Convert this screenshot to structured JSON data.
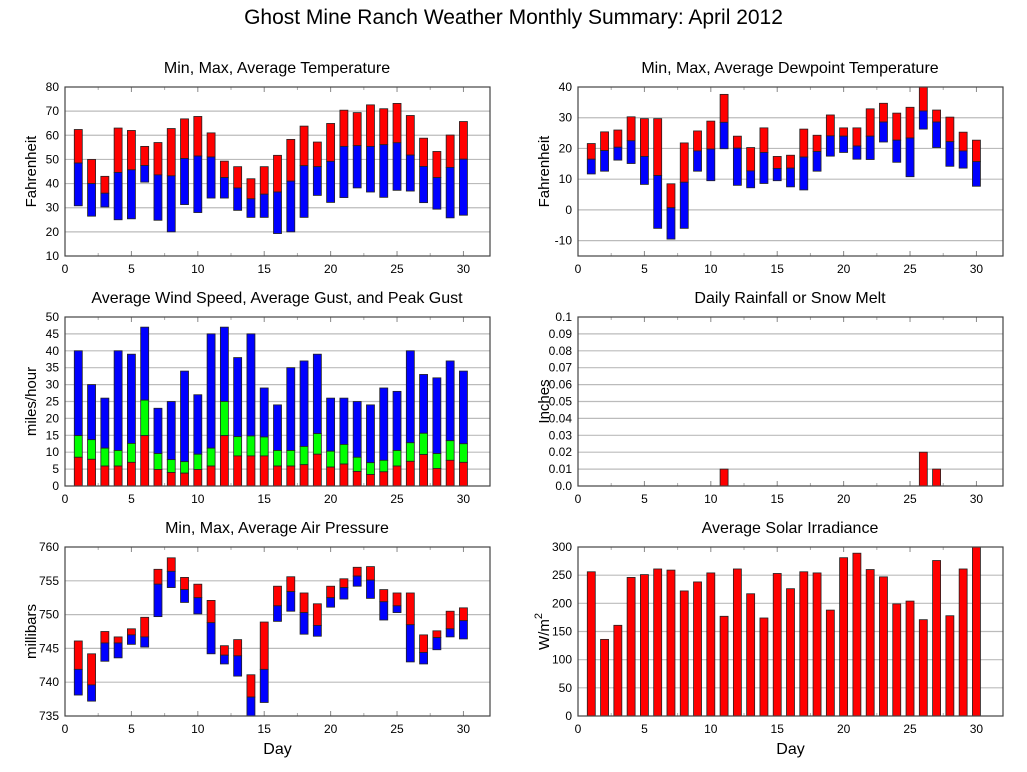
{
  "title": "Ghost Mine Ranch Weather Monthly Summary: April 2012",
  "colors": {
    "max": "#ff0000",
    "min": "#0000ff",
    "gust": "#00ff00",
    "bar_edge": "#000000",
    "grid": "#bbbbbb"
  },
  "chart_data": [
    {
      "id": "temperature",
      "type": "bar",
      "title": "Min, Max, Average Temperature",
      "xlabel": "",
      "ylabel": "Fahrenheit",
      "xlim": [
        0,
        32
      ],
      "ylim": [
        10,
        80
      ],
      "xticks": [
        0,
        5,
        10,
        15,
        20,
        25,
        30
      ],
      "yticks": [
        10,
        20,
        30,
        40,
        50,
        60,
        70,
        80
      ],
      "grid": "horizontal",
      "x": [
        1,
        2,
        3,
        4,
        5,
        6,
        7,
        8,
        9,
        10,
        11,
        12,
        13,
        14,
        15,
        16,
        17,
        18,
        19,
        20,
        21,
        22,
        23,
        24,
        25,
        26,
        27,
        28,
        29,
        30
      ],
      "series": [
        {
          "name": "Max",
          "values": [
            62.4,
            50,
            43,
            63,
            62,
            55.4,
            57,
            62.8,
            66.8,
            67.8,
            61,
            49.3,
            47,
            42,
            47,
            51.7,
            58.3,
            63.8,
            57.2,
            64.9,
            70.4,
            69.4,
            72.6,
            71,
            73.2,
            68.2,
            58.8,
            53.3,
            60.1,
            65.7
          ]
        },
        {
          "name": "Average",
          "values": [
            48.5,
            40,
            36,
            44.6,
            45.7,
            47.5,
            43.6,
            43.2,
            50.4,
            51.4,
            51,
            42.5,
            38.2,
            33.7,
            35.6,
            36.5,
            41,
            47.4,
            47,
            49.2,
            55.4,
            55.7,
            55.4,
            56.1,
            56.9,
            51.8,
            47.1,
            42.5,
            46.7,
            50.1
          ]
        },
        {
          "name": "Min",
          "values": [
            30.8,
            26.5,
            30.3,
            25,
            25.4,
            40.6,
            24.8,
            20,
            31.3,
            28,
            34,
            34,
            28.9,
            26,
            26,
            19.3,
            20,
            26,
            35.1,
            32.2,
            34.2,
            38.2,
            36.5,
            34.3,
            37.2,
            36.9,
            32.1,
            29.4,
            25.8,
            26.9
          ]
        }
      ]
    },
    {
      "id": "dewpoint",
      "type": "bar",
      "title": "Min, Max, Average Dewpoint Temperature",
      "xlabel": "",
      "ylabel": "Fahrenheit",
      "xlim": [
        0,
        32
      ],
      "ylim": [
        -15,
        40
      ],
      "xticks": [
        0,
        5,
        10,
        15,
        20,
        25,
        30
      ],
      "yticks": [
        -10,
        0,
        10,
        20,
        30,
        40
      ],
      "grid": "horizontal",
      "x": [
        1,
        2,
        3,
        4,
        5,
        6,
        7,
        8,
        9,
        10,
        11,
        12,
        13,
        14,
        15,
        16,
        17,
        18,
        19,
        20,
        21,
        22,
        23,
        24,
        25,
        26,
        27,
        28,
        29,
        30
      ],
      "series": [
        {
          "name": "Max",
          "values": [
            21.6,
            25.4,
            26,
            30.3,
            29.7,
            29.7,
            8.5,
            21.8,
            25.7,
            28.9,
            37.6,
            24,
            20.3,
            26.7,
            17.4,
            17.8,
            26.3,
            24.3,
            30.9,
            26.7,
            26.7,
            32.9,
            34.7,
            31.5,
            33.4,
            40,
            32.5,
            30.2,
            25.3,
            22.7
          ]
        },
        {
          "name": "Average",
          "values": [
            16.5,
            19.3,
            20.4,
            22.5,
            17.4,
            11.2,
            0.7,
            9,
            19.2,
            19.8,
            28.5,
            20.1,
            12.7,
            18.7,
            13.5,
            13.6,
            17.2,
            19,
            24.1,
            24,
            20.8,
            24,
            28.6,
            22.7,
            23.4,
            32.2,
            28.6,
            22.2,
            19.2,
            15.7
          ]
        },
        {
          "name": "Min",
          "values": [
            11.7,
            12.6,
            16.2,
            15.1,
            8.3,
            -6,
            -9.5,
            -6,
            12.6,
            9.5,
            19.9,
            8,
            7.2,
            8.6,
            9.5,
            7.5,
            6.5,
            12.6,
            17.5,
            18.7,
            16.5,
            16.4,
            22.1,
            15.5,
            10.8,
            26.3,
            20.3,
            14.2,
            13.6,
            7.7
          ]
        }
      ]
    },
    {
      "id": "wind",
      "type": "bar",
      "title": "Average Wind Speed, Average Gust, and Peak Gust",
      "xlabel": "",
      "ylabel": "miles/hour",
      "xlim": [
        0,
        32
      ],
      "ylim": [
        0,
        50
      ],
      "xticks": [
        0,
        5,
        10,
        15,
        20,
        25,
        30
      ],
      "yticks": [
        0,
        5,
        10,
        15,
        20,
        25,
        30,
        35,
        40,
        45,
        50
      ],
      "grid": "horizontal",
      "x": [
        1,
        2,
        3,
        4,
        5,
        6,
        7,
        8,
        9,
        10,
        11,
        12,
        13,
        14,
        15,
        16,
        17,
        18,
        19,
        20,
        21,
        22,
        23,
        24,
        25,
        26,
        27,
        28,
        29,
        30
      ],
      "series": [
        {
          "name": "Peak Gust",
          "values": [
            40,
            30,
            26,
            40,
            39,
            47,
            23,
            25,
            34,
            27,
            45,
            47,
            38,
            45,
            29,
            24,
            35,
            37,
            39,
            26,
            26,
            25,
            24,
            29,
            28,
            40,
            33,
            32,
            37,
            34
          ]
        },
        {
          "name": "Average Gust",
          "values": [
            14.9,
            13.7,
            11.2,
            10.5,
            12.6,
            25.4,
            9.6,
            7.8,
            7.2,
            9.4,
            11.2,
            25,
            14.6,
            14.8,
            14.5,
            10.5,
            10.5,
            11.7,
            15.5,
            10.3,
            12.3,
            8.5,
            6.9,
            7.6,
            10.5,
            12.8,
            15.6,
            9.6,
            13.4,
            12.5
          ]
        },
        {
          "name": "Average Wind Speed",
          "values": [
            8.5,
            7.9,
            5.9,
            5.9,
            7,
            14.9,
            4.9,
            4,
            3.8,
            4.9,
            5.9,
            14.9,
            8.9,
            8.9,
            8.9,
            5.9,
            5.9,
            6.3,
            9.4,
            5.6,
            6.5,
            4.3,
            3.4,
            4.2,
            5.9,
            7.3,
            9.3,
            5.2,
            7.6,
            7
          ]
        }
      ]
    },
    {
      "id": "rain",
      "type": "bar",
      "title": "Daily Rainfall or Snow Melt",
      "xlabel": "",
      "ylabel": "Inches",
      "xlim": [
        0,
        32
      ],
      "ylim": [
        0,
        0.1
      ],
      "xticks": [
        0,
        5,
        10,
        15,
        20,
        25,
        30
      ],
      "yticks": [
        "0.0",
        "0.01",
        "0.02",
        "0.03",
        "0.04",
        "0.05",
        "0.06",
        "0.07",
        "0.08",
        "0.09",
        "0.1"
      ],
      "grid": "horizontal",
      "x": [
        11,
        26,
        27
      ],
      "series": [
        {
          "name": "Rainfall",
          "values": [
            0.01,
            0.02,
            0.01
          ]
        }
      ]
    },
    {
      "id": "pressure",
      "type": "bar",
      "title": "Min, Max, Average Air Pressure",
      "xlabel": "Day",
      "ylabel": "millibars",
      "xlim": [
        0,
        32
      ],
      "ylim": [
        735,
        760
      ],
      "xticks": [
        0,
        5,
        10,
        15,
        20,
        25,
        30
      ],
      "yticks": [
        735,
        740,
        745,
        750,
        755,
        760
      ],
      "grid": "horizontal",
      "x": [
        1,
        2,
        3,
        4,
        5,
        6,
        7,
        8,
        9,
        10,
        11,
        12,
        13,
        14,
        15,
        16,
        17,
        18,
        19,
        20,
        21,
        22,
        23,
        24,
        25,
        26,
        27,
        28,
        29,
        30
      ],
      "series": [
        {
          "name": "Max",
          "values": [
            746.1,
            744.2,
            747.5,
            746.7,
            747.9,
            749.6,
            756.7,
            758.4,
            755.5,
            754.5,
            752.1,
            745.4,
            746.3,
            741.1,
            748.9,
            754.2,
            755.6,
            753.2,
            751.6,
            754.2,
            755.3,
            757,
            757.1,
            753.7,
            753.2,
            753.2,
            747,
            747.6,
            750.5,
            751
          ]
        },
        {
          "name": "Average",
          "values": [
            741.9,
            739.6,
            745.8,
            745.8,
            747,
            746.7,
            754.5,
            756.4,
            753.7,
            752.5,
            748.8,
            744,
            743.9,
            737.8,
            741.9,
            751.3,
            753.4,
            750.3,
            748.4,
            752.5,
            754,
            755.7,
            755.1,
            751.9,
            751.3,
            748.5,
            744.4,
            746.6,
            747.9,
            749.1
          ]
        },
        {
          "name": "Min",
          "values": [
            738.1,
            737.2,
            743.1,
            743.6,
            745.6,
            745.2,
            749.7,
            754,
            751.8,
            750.1,
            744.2,
            742.7,
            740.9,
            735,
            737,
            749,
            750.5,
            747.1,
            746.8,
            751.1,
            752.3,
            754.2,
            752.4,
            749.2,
            750.3,
            743,
            742.7,
            744.8,
            746.7,
            746.4
          ]
        }
      ]
    },
    {
      "id": "solar",
      "type": "bar",
      "title": "Average Solar Irradiance",
      "xlabel": "Day",
      "ylabel": "W/m",
      "ylabel_sup": "2",
      "xlim": [
        0,
        32
      ],
      "ylim": [
        0,
        300
      ],
      "xticks": [
        0,
        5,
        10,
        15,
        20,
        25,
        30
      ],
      "yticks": [
        0,
        50,
        100,
        150,
        200,
        250,
        300
      ],
      "grid": "horizontal",
      "x": [
        1,
        2,
        3,
        4,
        5,
        6,
        7,
        8,
        9,
        10,
        11,
        12,
        13,
        14,
        15,
        16,
        17,
        18,
        19,
        20,
        21,
        22,
        23,
        24,
        25,
        26,
        27,
        28,
        29,
        30
      ],
      "series": [
        {
          "name": "Solar",
          "values": [
            256,
            136,
            161,
            246,
            251,
            261,
            259,
            222,
            238,
            254,
            177,
            261,
            217,
            174,
            253,
            226,
            256,
            254,
            188,
            281,
            289,
            260,
            247,
            199,
            204,
            171,
            276,
            178,
            261,
            300
          ]
        }
      ]
    }
  ]
}
